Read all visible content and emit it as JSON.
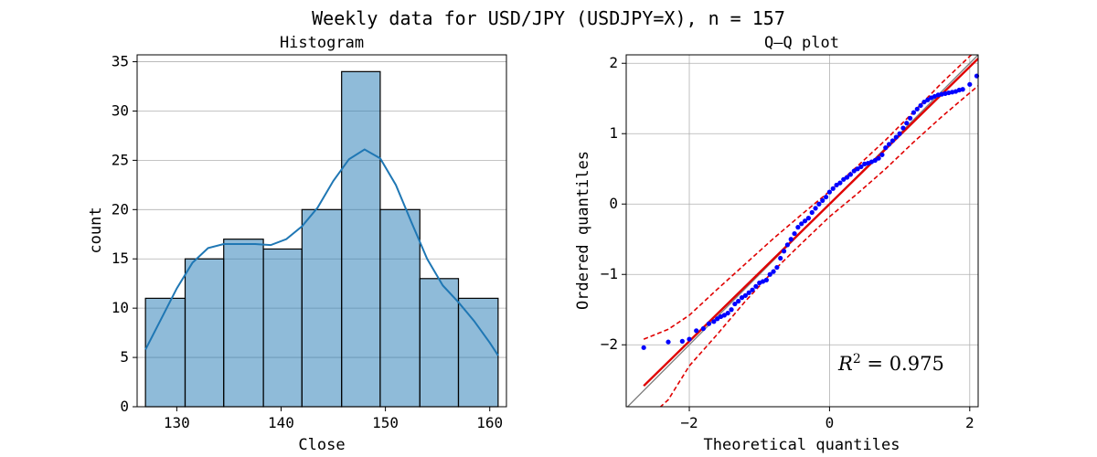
{
  "figure": {
    "title": "Weekly data for USD/JPY (USDJPY=X), n = 157"
  },
  "chart_data": [
    {
      "type": "bar",
      "subtype": "histogram",
      "title": "Histogram",
      "xlabel": "Close",
      "ylabel": "count",
      "bin_edges": [
        127.0,
        130.8,
        134.5,
        138.3,
        142.0,
        145.8,
        149.5,
        153.3,
        157.0,
        160.8
      ],
      "values": [
        11,
        15,
        17,
        16,
        20,
        34,
        20,
        13,
        11
      ],
      "xlim": [
        126.2,
        161.6
      ],
      "ylim": [
        0,
        35.7
      ],
      "xticks": [
        130,
        140,
        150,
        160
      ],
      "yticks": [
        0,
        5,
        10,
        15,
        20,
        25,
        30,
        35
      ],
      "grid": "y",
      "kde": {
        "x": [
          127.0,
          128.5,
          130.0,
          131.5,
          133.0,
          134.5,
          136.0,
          137.5,
          139.0,
          140.5,
          142.0,
          143.5,
          145.0,
          146.5,
          148.0,
          149.5,
          151.0,
          152.5,
          154.0,
          155.5,
          157.0,
          158.5,
          160.0,
          160.8
        ],
        "y": [
          5.8,
          8.9,
          12.0,
          14.6,
          16.1,
          16.5,
          16.5,
          16.5,
          16.4,
          17.0,
          18.3,
          20.2,
          22.9,
          25.1,
          26.1,
          25.2,
          22.5,
          18.7,
          15.0,
          12.3,
          10.6,
          8.7,
          6.5,
          5.2
        ]
      },
      "colors": {
        "bar_fill": "#1f77b4",
        "kde": "#1f77b4"
      }
    },
    {
      "type": "scatter",
      "subtype": "qq-plot",
      "title": "Q–Q plot",
      "xlabel": "Theoretical quantiles",
      "ylabel": "Ordered quantiles",
      "xlim": [
        -2.9,
        2.12
      ],
      "ylim": [
        -2.88,
        2.12
      ],
      "xticks": [
        -2,
        0,
        2
      ],
      "yticks": [
        -2,
        -1,
        0,
        1,
        2
      ],
      "grid": "both",
      "annotation": {
        "prefix": "R",
        "sup": "2",
        "eq": " = ",
        "value": "0.975"
      },
      "fit_line": {
        "slope": 0.975,
        "intercept": 0.0
      },
      "envelope": {
        "x": [
          -2.65,
          -2.3,
          -2.0,
          -1.6,
          -1.2,
          -0.8,
          -0.4,
          0.0,
          0.4,
          0.8,
          1.2,
          1.6,
          2.0,
          2.12
        ],
        "upper": [
          -1.92,
          -1.78,
          -1.58,
          -1.21,
          -0.85,
          -0.49,
          -0.15,
          0.18,
          0.54,
          0.91,
          1.31,
          1.72,
          2.1,
          2.2
        ],
        "lower": [
          -3.1,
          -2.78,
          -2.3,
          -1.85,
          -1.38,
          -0.95,
          -0.56,
          -0.18,
          0.15,
          0.5,
          0.88,
          1.24,
          1.58,
          1.68
        ]
      },
      "points": {
        "x": [
          -2.65,
          -2.3,
          -2.1,
          -2.0,
          -1.9,
          -1.8,
          -1.72,
          -1.65,
          -1.6,
          -1.55,
          -1.5,
          -1.45,
          -1.4,
          -1.35,
          -1.3,
          -1.25,
          -1.2,
          -1.15,
          -1.1,
          -1.05,
          -1.0,
          -0.95,
          -0.9,
          -0.85,
          -0.8,
          -0.75,
          -0.7,
          -0.65,
          -0.6,
          -0.55,
          -0.5,
          -0.45,
          -0.4,
          -0.35,
          -0.3,
          -0.25,
          -0.2,
          -0.15,
          -0.1,
          -0.05,
          0.0,
          0.05,
          0.1,
          0.15,
          0.2,
          0.25,
          0.3,
          0.35,
          0.4,
          0.45,
          0.5,
          0.55,
          0.6,
          0.65,
          0.7,
          0.75,
          0.8,
          0.85,
          0.9,
          0.95,
          1.0,
          1.05,
          1.1,
          1.15,
          1.2,
          1.25,
          1.3,
          1.35,
          1.4,
          1.45,
          1.5,
          1.55,
          1.6,
          1.65,
          1.7,
          1.75,
          1.8,
          1.85,
          1.9,
          2.0,
          2.1
        ],
        "y": [
          -2.04,
          -1.96,
          -1.95,
          -1.92,
          -1.8,
          -1.77,
          -1.7,
          -1.67,
          -1.63,
          -1.6,
          -1.58,
          -1.55,
          -1.5,
          -1.42,
          -1.38,
          -1.33,
          -1.3,
          -1.26,
          -1.22,
          -1.17,
          -1.12,
          -1.1,
          -1.08,
          -1.0,
          -0.96,
          -0.9,
          -0.77,
          -0.67,
          -0.58,
          -0.5,
          -0.42,
          -0.33,
          -0.28,
          -0.24,
          -0.2,
          -0.12,
          -0.06,
          0.0,
          0.05,
          0.1,
          0.17,
          0.22,
          0.27,
          0.3,
          0.35,
          0.38,
          0.42,
          0.47,
          0.5,
          0.53,
          0.57,
          0.58,
          0.6,
          0.62,
          0.65,
          0.7,
          0.8,
          0.85,
          0.9,
          0.95,
          1.0,
          1.08,
          1.15,
          1.22,
          1.3,
          1.35,
          1.4,
          1.45,
          1.48,
          1.51,
          1.53,
          1.55,
          1.56,
          1.57,
          1.58,
          1.59,
          1.6,
          1.62,
          1.63,
          1.7,
          1.82
        ]
      },
      "colors": {
        "points": "#0000ff",
        "fit_line": "#e00000",
        "envelope": "#e00000",
        "identity": "#7f7f7f"
      }
    }
  ]
}
